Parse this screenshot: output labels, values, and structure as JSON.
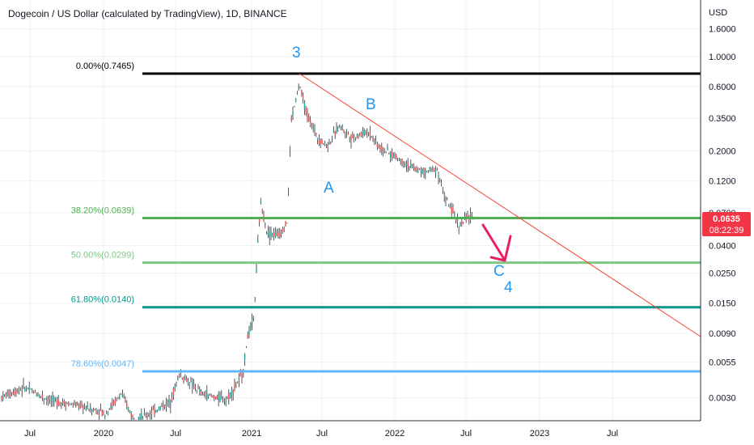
{
  "header": {
    "title": "Dogecoin / US Dollar (calculated by TradingView), 1D, BINANCE"
  },
  "price_axis": {
    "currency": "USD",
    "ticks": [
      "1.6000",
      "1.0000",
      "0.6000",
      "0.3500",
      "0.2000",
      "0.1200",
      "0.0700",
      "0.0400",
      "0.0250",
      "0.0150",
      "0.0090",
      "0.0055",
      "0.0030"
    ],
    "tick_values": [
      1.6,
      1.0,
      0.6,
      0.35,
      0.2,
      0.12,
      0.07,
      0.04,
      0.025,
      0.015,
      0.009,
      0.0055,
      0.003
    ]
  },
  "price_badge": {
    "price": "0.0635",
    "countdown": "08:22:39",
    "color": "#f23645"
  },
  "time_axis": {
    "ticks": [
      "Jul",
      "2020",
      "Jul",
      "2021",
      "Jul",
      "2022",
      "Jul",
      "2023",
      "Jul"
    ]
  },
  "fib_levels": [
    {
      "label": "0.00%(0.7465)",
      "value": 0.7465,
      "color": "#000000"
    },
    {
      "label": "38.20%(0.0639)",
      "value": 0.0639,
      "color": "#4caf50"
    },
    {
      "label": "50.00%(0.0299)",
      "value": 0.0299,
      "color": "#81c784"
    },
    {
      "label": "61.80%(0.0140)",
      "value": 0.014,
      "color": "#009688"
    },
    {
      "label": "78.60%(0.0047)",
      "value": 0.0047,
      "color": "#64b5f6"
    }
  ],
  "wave_labels": [
    "3",
    "B",
    "A",
    "C",
    "4"
  ],
  "colors": {
    "trendline": "#f44336",
    "arrow": "#e91e63",
    "wave_text": "#2196f3",
    "candle_up": "#26a69a",
    "candle_down": "#ef5350"
  },
  "chart_data": {
    "type": "line",
    "scale": "log",
    "x": [
      "2019-07",
      "2019-09",
      "2019-11",
      "2020-01",
      "2020-03",
      "2020-05",
      "2020-07",
      "2020-09",
      "2020-11",
      "2021-01",
      "2021-02",
      "2021-03",
      "2021-04",
      "2021-05",
      "2021-06",
      "2021-08",
      "2021-10",
      "2021-11",
      "2022-01",
      "2022-03",
      "2022-04",
      "2022-05",
      "2022-06",
      "2022-07"
    ],
    "series": [
      {
        "values": [
          0.0034,
          0.0028,
          0.0025,
          0.0022,
          0.0019,
          0.0024,
          0.0032,
          0.0027,
          0.0028,
          0.009,
          0.055,
          0.055,
          0.3,
          0.55,
          0.3,
          0.27,
          0.26,
          0.25,
          0.16,
          0.13,
          0.14,
          0.085,
          0.06,
          0.064
        ]
      }
    ],
    "ylim": [
      0.002,
      2.0
    ]
  }
}
